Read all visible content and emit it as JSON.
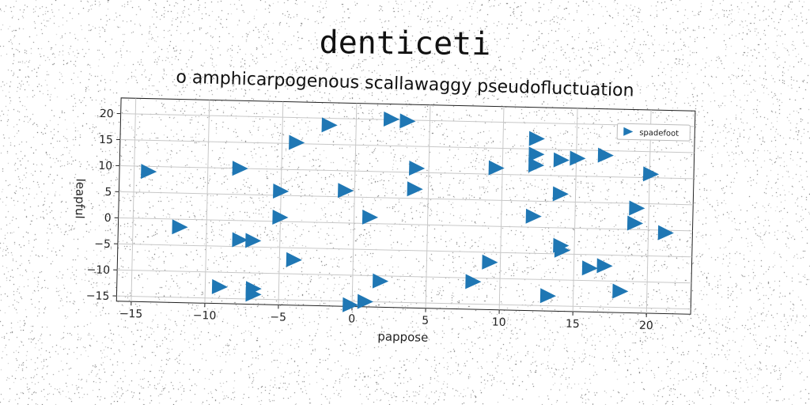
{
  "chart_data": {
    "type": "scatter",
    "title": "denticeti",
    "subtitle": "o amphicarpogenous scallawaggy pseudofluctuation",
    "xlabel": "pappose",
    "ylabel": "leapful",
    "xlim": [
      -16,
      23
    ],
    "ylim": [
      -16,
      23
    ],
    "xticks": [
      -15,
      -10,
      -5,
      0,
      5,
      10,
      15,
      20
    ],
    "yticks": [
      -15,
      -10,
      -5,
      0,
      5,
      10,
      15,
      20
    ],
    "grid": true,
    "legend_position": "top-right",
    "marker": "triangle-right",
    "series": [
      {
        "name": "spadefoot",
        "color": "#1f77b4",
        "points": [
          [
            -14.0,
            9.0
          ],
          [
            -11.8,
            -1.5
          ],
          [
            -9.0,
            -12.8
          ],
          [
            -7.8,
            10.0
          ],
          [
            -7.7,
            -3.7
          ],
          [
            -6.8,
            -3.8
          ],
          [
            -6.7,
            -13.0
          ],
          [
            -6.7,
            -14.1
          ],
          [
            -5.0,
            5.8
          ],
          [
            -5.0,
            0.8
          ],
          [
            -4.0,
            15.2
          ],
          [
            -4.0,
            -7.3
          ],
          [
            -1.8,
            18.7
          ],
          [
            -0.6,
            6.2
          ],
          [
            -0.1,
            -15.7
          ],
          [
            0.9,
            -15.0
          ],
          [
            1.1,
            1.2
          ],
          [
            1.9,
            -11.0
          ],
          [
            2.4,
            20.1
          ],
          [
            3.5,
            19.8
          ],
          [
            4.2,
            10.8
          ],
          [
            4.1,
            6.8
          ],
          [
            8.2,
            -10.7
          ],
          [
            9.3,
            -6.9
          ],
          [
            9.6,
            11.2
          ],
          [
            12.3,
            17.0
          ],
          [
            12.3,
            14.0
          ],
          [
            12.3,
            11.9
          ],
          [
            12.2,
            2.1
          ],
          [
            13.3,
            -13.1
          ],
          [
            14.0,
            13.0
          ],
          [
            14.0,
            6.5
          ],
          [
            14.1,
            -3.4
          ],
          [
            14.2,
            -4.3
          ],
          [
            15.1,
            13.4
          ],
          [
            16.1,
            -7.6
          ],
          [
            17.1,
            -7.1
          ],
          [
            17.0,
            14.1
          ],
          [
            18.2,
            -11.9
          ],
          [
            19.2,
            4.1
          ],
          [
            19.1,
            1.2
          ],
          [
            20.1,
            10.7
          ],
          [
            21.2,
            -0.5
          ]
        ]
      }
    ]
  }
}
